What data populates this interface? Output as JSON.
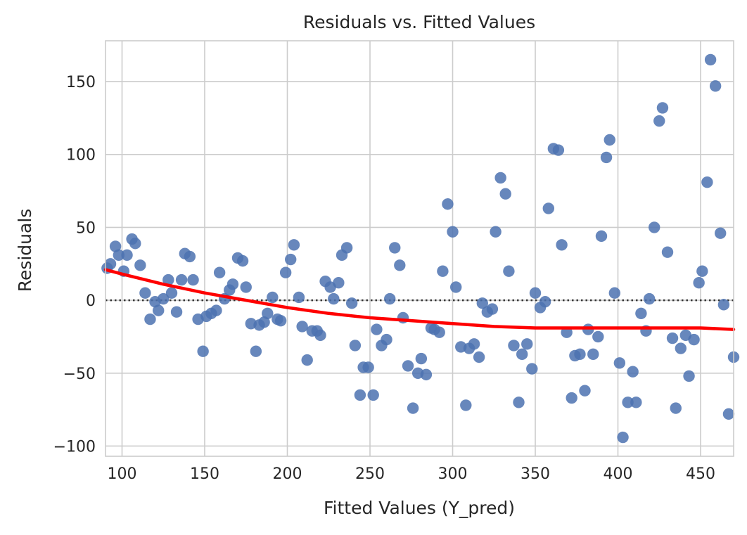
{
  "chart_data": {
    "type": "scatter",
    "title": "Residuals vs. Fitted Values",
    "xlabel": "Fitted Values (Y_pred)",
    "ylabel": "Residuals",
    "xlim": [
      90,
      470
    ],
    "ylim": [
      -107,
      178
    ],
    "xticks": [
      100,
      150,
      200,
      250,
      300,
      350,
      400,
      450
    ],
    "yticks": [
      -100,
      -50,
      0,
      50,
      100,
      150
    ],
    "grid": true,
    "colors": {
      "points": "#4c72b0",
      "smooth": "#ff0000",
      "zero_line": "#333333",
      "grid": "#cccccc"
    },
    "reference_line": {
      "y": 0,
      "style": "dotted"
    },
    "points": [
      [
        91,
        22
      ],
      [
        93,
        25
      ],
      [
        96,
        37
      ],
      [
        98,
        31
      ],
      [
        101,
        20
      ],
      [
        103,
        31
      ],
      [
        106,
        42
      ],
      [
        108,
        39
      ],
      [
        111,
        24
      ],
      [
        114,
        5
      ],
      [
        117,
        -13
      ],
      [
        120,
        -1
      ],
      [
        122,
        -7
      ],
      [
        125,
        1
      ],
      [
        128,
        14
      ],
      [
        130,
        5
      ],
      [
        133,
        -8
      ],
      [
        136,
        14
      ],
      [
        138,
        32
      ],
      [
        141,
        30
      ],
      [
        143,
        14
      ],
      [
        146,
        -13
      ],
      [
        149,
        -35
      ],
      [
        151,
        -11
      ],
      [
        154,
        -9
      ],
      [
        157,
        -7
      ],
      [
        159,
        19
      ],
      [
        162,
        1
      ],
      [
        165,
        7
      ],
      [
        167,
        11
      ],
      [
        170,
        29
      ],
      [
        173,
        27
      ],
      [
        175,
        9
      ],
      [
        178,
        -16
      ],
      [
        181,
        -35
      ],
      [
        183,
        -17
      ],
      [
        186,
        -15
      ],
      [
        188,
        -9
      ],
      [
        191,
        2
      ],
      [
        194,
        -13
      ],
      [
        196,
        -14
      ],
      [
        199,
        19
      ],
      [
        202,
        28
      ],
      [
        204,
        38
      ],
      [
        207,
        2
      ],
      [
        209,
        -18
      ],
      [
        212,
        -41
      ],
      [
        215,
        -21
      ],
      [
        218,
        -21
      ],
      [
        220,
        -24
      ],
      [
        223,
        13
      ],
      [
        226,
        9
      ],
      [
        228,
        1
      ],
      [
        231,
        12
      ],
      [
        233,
        31
      ],
      [
        236,
        36
      ],
      [
        239,
        -2
      ],
      [
        241,
        -31
      ],
      [
        244,
        -65
      ],
      [
        246,
        -46
      ],
      [
        249,
        -46
      ],
      [
        252,
        -65
      ],
      [
        254,
        -20
      ],
      [
        257,
        -31
      ],
      [
        260,
        -27
      ],
      [
        262,
        1
      ],
      [
        265,
        36
      ],
      [
        268,
        24
      ],
      [
        270,
        -12
      ],
      [
        273,
        -45
      ],
      [
        276,
        -74
      ],
      [
        279,
        -50
      ],
      [
        281,
        -40
      ],
      [
        284,
        -51
      ],
      [
        287,
        -19
      ],
      [
        289,
        -20
      ],
      [
        292,
        -22
      ],
      [
        294,
        20
      ],
      [
        297,
        66
      ],
      [
        300,
        47
      ],
      [
        302,
        9
      ],
      [
        305,
        -32
      ],
      [
        308,
        -72
      ],
      [
        310,
        -33
      ],
      [
        313,
        -30
      ],
      [
        316,
        -39
      ],
      [
        318,
        -2
      ],
      [
        321,
        -8
      ],
      [
        324,
        -6
      ],
      [
        326,
        47
      ],
      [
        329,
        84
      ],
      [
        332,
        73
      ],
      [
        334,
        20
      ],
      [
        337,
        -31
      ],
      [
        340,
        -70
      ],
      [
        342,
        -37
      ],
      [
        345,
        -30
      ],
      [
        348,
        -47
      ],
      [
        350,
        5
      ],
      [
        353,
        -5
      ],
      [
        356,
        -1
      ],
      [
        358,
        63
      ],
      [
        361,
        104
      ],
      [
        364,
        103
      ],
      [
        366,
        38
      ],
      [
        369,
        -22
      ],
      [
        372,
        -67
      ],
      [
        374,
        -38
      ],
      [
        377,
        -37
      ],
      [
        380,
        -62
      ],
      [
        382,
        -20
      ],
      [
        385,
        -37
      ],
      [
        388,
        -25
      ],
      [
        390,
        44
      ],
      [
        393,
        98
      ],
      [
        395,
        110
      ],
      [
        398,
        5
      ],
      [
        401,
        -43
      ],
      [
        403,
        -94
      ],
      [
        406,
        -70
      ],
      [
        409,
        -49
      ],
      [
        411,
        -70
      ],
      [
        414,
        -9
      ],
      [
        417,
        -21
      ],
      [
        419,
        1
      ],
      [
        422,
        50
      ],
      [
        425,
        123
      ],
      [
        427,
        132
      ],
      [
        430,
        33
      ],
      [
        433,
        -26
      ],
      [
        435,
        -74
      ],
      [
        438,
        -33
      ],
      [
        441,
        -24
      ],
      [
        443,
        -52
      ],
      [
        446,
        -27
      ],
      [
        449,
        12
      ],
      [
        451,
        20
      ],
      [
        454,
        81
      ],
      [
        456,
        165
      ],
      [
        459,
        147
      ],
      [
        462,
        46
      ],
      [
        464,
        -3
      ],
      [
        467,
        -78
      ],
      [
        470,
        -39
      ]
    ],
    "smooth_line": [
      [
        90,
        21
      ],
      [
        100,
        18
      ],
      [
        125,
        11
      ],
      [
        150,
        5
      ],
      [
        175,
        0
      ],
      [
        200,
        -5
      ],
      [
        225,
        -9
      ],
      [
        250,
        -12
      ],
      [
        275,
        -14
      ],
      [
        300,
        -16
      ],
      [
        325,
        -18
      ],
      [
        350,
        -19
      ],
      [
        375,
        -19
      ],
      [
        400,
        -19
      ],
      [
        425,
        -19
      ],
      [
        450,
        -19
      ],
      [
        470,
        -20
      ]
    ]
  }
}
